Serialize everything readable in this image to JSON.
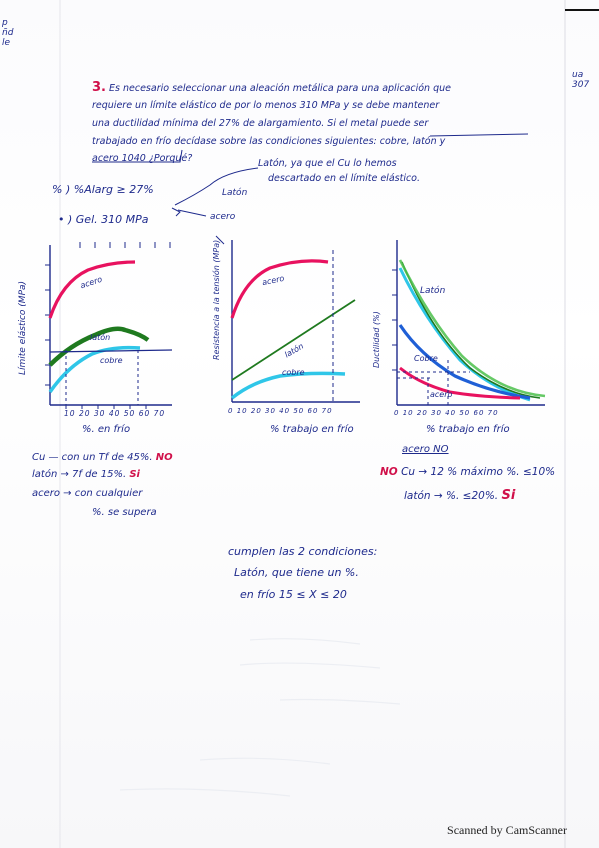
{
  "problem": {
    "number": "3.",
    "line1": "Es necesario seleccionar una aleación metálica para una aplicación que",
    "line2": "requiere un límite elástico de por lo menos 310 MPa y se debe mantener",
    "line3": "una ductilidad mínima del 27% de alargamiento. Si el metal puede ser",
    "line4": "trabajado en frío decídase sobre las condiciones siguientes: cobre, latón y",
    "line5": "acero 1040 ¿Porqué?"
  },
  "notes": {
    "criterion1": "% ) %Alarg ≥ 27%",
    "criterion2": "• ) Gel. 310 MPa",
    "answer_note_l1": "Latón, ya que el Cu lo hemos",
    "answer_note_l2": "descartado en el límite elástico.",
    "arrow_laton": "Latón",
    "arrow_acero": "acero"
  },
  "graphs": {
    "g1": {
      "ylabel": "Límite elástico (MPa)",
      "xlabel": "%. en frío",
      "acero": "acero",
      "laton": "latón",
      "cobre": "cobre",
      "xticks": [
        "10",
        "20",
        "30",
        "40",
        "50",
        "60",
        "70"
      ]
    },
    "g2": {
      "ylabel": "Resistencia a la tensión (MPa)",
      "xlabel": "% trabajo en frío",
      "acero": "acero",
      "laton": "latón",
      "cobre": "cobre",
      "xticks": [
        "0",
        "10",
        "20",
        "30",
        "40",
        "50",
        "60",
        "70"
      ]
    },
    "g3": {
      "ylabel": "Ductilidad (%)",
      "xlabel": "% trabajo en frío",
      "acero": "acero",
      "laton": "Latón",
      "cobre": "Cobre",
      "xticks": [
        "0",
        "10",
        "20",
        "30",
        "40",
        "50",
        "60",
        "70"
      ]
    }
  },
  "results_left": {
    "cu": "Cu — con un Tf de 45%.",
    "cu_verdict": "NO",
    "laton": "latón → 7f de 15%.",
    "laton_verdict": "Si",
    "acero_l1": "acero → con cualquier",
    "acero_l2": "%. se supera"
  },
  "results_right": {
    "acero": "acero NO",
    "cu_prefix": "NO",
    "cu": "Cu → 12 % máximo %. ≤10%",
    "laton": "latón → %. ≤20%.",
    "laton_verdict": "Si"
  },
  "conclusion": {
    "l1": "cumplen las 2 condiciones:",
    "l2": "Latón, que tiene un %.",
    "l3": "en frío 15 ≤ X ≤ 20"
  },
  "footer": "Scanned by CamScanner",
  "colors": {
    "ink": "#1e2a8c",
    "acero": "#e8125f",
    "laton": "#1f7a1f",
    "cobre": "#2fc6e8",
    "blue": "#1f5fd6",
    "verdict": "#d0104a"
  }
}
